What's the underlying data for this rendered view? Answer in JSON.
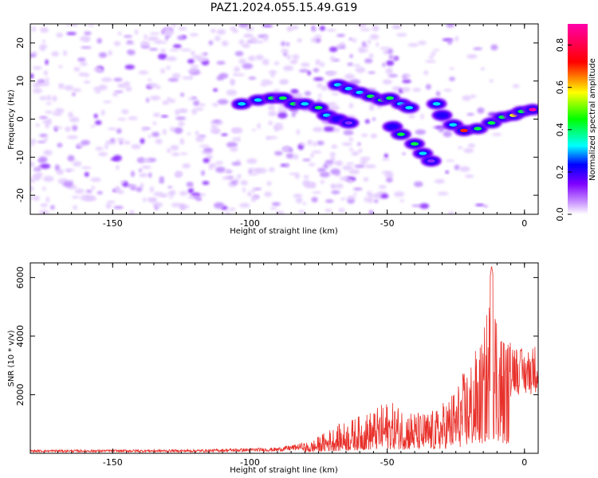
{
  "title": "PAZ1.2024.055.15.49.G19",
  "chart_data": [
    {
      "type": "heatmap",
      "xlabel": "Height of straight line (km)",
      "ylabel": "Frequency (Hz)",
      "xlim": [
        -180,
        5
      ],
      "ylim": [
        -25,
        25
      ],
      "x_ticks": [
        -150,
        -100,
        -50,
        0
      ],
      "y_ticks": [
        -20,
        -10,
        0,
        10,
        20
      ],
      "colorbar": {
        "label": "Normalized spectral amplitude",
        "range": [
          0,
          0.9
        ],
        "ticks": [
          0.0,
          0.2,
          0.4,
          0.6,
          0.8
        ],
        "colors": [
          "#ffffff",
          "#cc99ff",
          "#7f00ff",
          "#0000ff",
          "#00ffff",
          "#00ff00",
          "#ffff00",
          "#ff0000",
          "#ff00aa"
        ]
      },
      "ridge_points": [
        {
          "x": -103,
          "y": 4,
          "v": 0.3
        },
        {
          "x": -97,
          "y": 5,
          "v": 0.35
        },
        {
          "x": -92,
          "y": 5.5,
          "v": 0.4
        },
        {
          "x": -88,
          "y": 5.5,
          "v": 0.45
        },
        {
          "x": -84,
          "y": 4,
          "v": 0.4
        },
        {
          "x": -80,
          "y": 4,
          "v": 0.35
        },
        {
          "x": -75,
          "y": 3,
          "v": 0.45
        },
        {
          "x": -72,
          "y": 1,
          "v": 0.3
        },
        {
          "x": -68,
          "y": 0,
          "v": 0.25
        },
        {
          "x": -64,
          "y": -1,
          "v": 0.2
        },
        {
          "x": -68,
          "y": 9,
          "v": 0.3
        },
        {
          "x": -64,
          "y": 8,
          "v": 0.3
        },
        {
          "x": -60,
          "y": 7,
          "v": 0.35
        },
        {
          "x": -56,
          "y": 6,
          "v": 0.45
        },
        {
          "x": -52,
          "y": 5,
          "v": 0.4
        },
        {
          "x": -49,
          "y": 5.5,
          "v": 0.5
        },
        {
          "x": -45,
          "y": 4,
          "v": 0.3
        },
        {
          "x": -42,
          "y": 3,
          "v": 0.3
        },
        {
          "x": -48,
          "y": -2,
          "v": 0.25
        },
        {
          "x": -45,
          "y": -4,
          "v": 0.4
        },
        {
          "x": -40,
          "y": -6.5,
          "v": 0.5
        },
        {
          "x": -37,
          "y": -9,
          "v": 0.3
        },
        {
          "x": -34,
          "y": -11,
          "v": 0.2
        },
        {
          "x": -32,
          "y": 4,
          "v": 0.3
        },
        {
          "x": -30,
          "y": 1,
          "v": 0.25
        },
        {
          "x": -26,
          "y": -1.5,
          "v": 0.35
        },
        {
          "x": -22,
          "y": -3,
          "v": 0.7
        },
        {
          "x": -17,
          "y": -2.5,
          "v": 0.5
        },
        {
          "x": -12,
          "y": -1,
          "v": 0.4
        },
        {
          "x": -8,
          "y": 0.5,
          "v": 0.45
        },
        {
          "x": -4,
          "y": 1,
          "v": 0.55
        },
        {
          "x": -1,
          "y": 2,
          "v": 0.5
        },
        {
          "x": 3,
          "y": 2.5,
          "v": 0.8
        }
      ]
    },
    {
      "type": "line",
      "xlabel": "Height of straight line (km)",
      "ylabel": "SNR (10 * v/v)",
      "xlim": [
        -180,
        5
      ],
      "ylim": [
        0,
        6500
      ],
      "x_ticks": [
        -150,
        -100,
        -50,
        0
      ],
      "y_ticks": [
        2000,
        4000,
        6000
      ],
      "color": "#e8302a",
      "envelope": [
        {
          "x": -180,
          "y": 120
        },
        {
          "x": -120,
          "y": 130
        },
        {
          "x": -90,
          "y": 200
        },
        {
          "x": -78,
          "y": 400
        },
        {
          "x": -70,
          "y": 900
        },
        {
          "x": -60,
          "y": 1300
        },
        {
          "x": -55,
          "y": 1500
        },
        {
          "x": -50,
          "y": 1800
        },
        {
          "x": -44,
          "y": 1600
        },
        {
          "x": -38,
          "y": 1400
        },
        {
          "x": -32,
          "y": 1500
        },
        {
          "x": -25,
          "y": 2300
        },
        {
          "x": -20,
          "y": 3200
        },
        {
          "x": -15,
          "y": 4000
        },
        {
          "x": -12,
          "y": 6400
        },
        {
          "x": -8,
          "y": 4200
        },
        {
          "x": -4,
          "y": 3800
        },
        {
          "x": 0,
          "y": 3500
        },
        {
          "x": 5,
          "y": 3800
        }
      ]
    }
  ]
}
